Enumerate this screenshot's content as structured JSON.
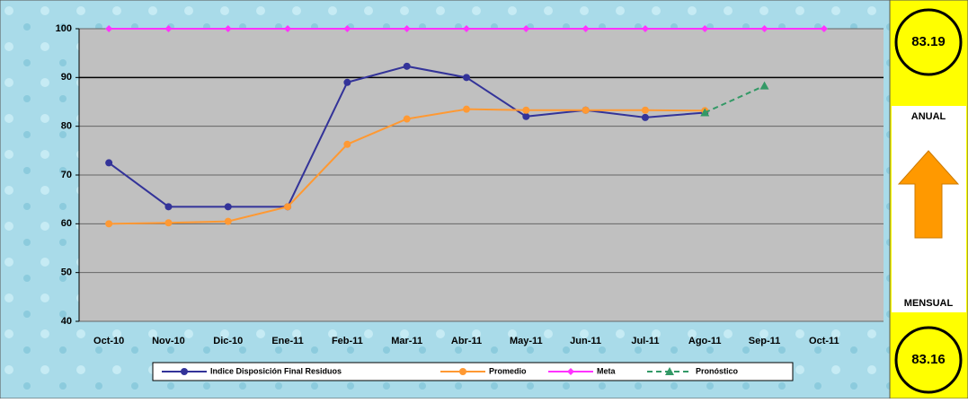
{
  "chart_data": {
    "type": "line",
    "categories": [
      "Oct-10",
      "Nov-10",
      "Dic-10",
      "Ene-11",
      "Feb-11",
      "Mar-11",
      "Abr-11",
      "May-11",
      "Jun-11",
      "Jul-11",
      "Ago-11",
      "Sep-11",
      "Oct-11"
    ],
    "series": [
      {
        "name": "Indice Disposición Final Residuos",
        "color": "#333399",
        "marker": "circle",
        "values": [
          72.5,
          63.5,
          63.5,
          63.5,
          89,
          92.3,
          90,
          82,
          83.3,
          81.8,
          82.8,
          null,
          null
        ]
      },
      {
        "name": "Promedio",
        "color": "#ff9933",
        "marker": "circle",
        "values": [
          60,
          60.2,
          60.5,
          63.5,
          76.3,
          81.5,
          83.5,
          83.3,
          83.3,
          83.3,
          83.2,
          null,
          null
        ]
      },
      {
        "name": "Meta",
        "color": "#ff33ff",
        "marker": "diamond",
        "values": [
          100,
          100,
          100,
          100,
          100,
          100,
          100,
          100,
          100,
          100,
          100,
          100,
          100
        ]
      },
      {
        "name": "Pronóstico",
        "color": "#339966",
        "marker": "triangle",
        "dashed": true,
        "values": [
          null,
          null,
          null,
          null,
          null,
          null,
          null,
          null,
          null,
          null,
          82.8,
          88.3,
          null
        ]
      }
    ],
    "ylim": [
      40,
      100
    ],
    "yticks": [
      40,
      50,
      60,
      70,
      80,
      90,
      100
    ],
    "grid": true,
    "legend": "bottom"
  },
  "panel": {
    "annual_value": 83.19,
    "annual_label": "ANUAL",
    "monthly_label": "MENSUAL",
    "monthly_value": 83.16
  }
}
